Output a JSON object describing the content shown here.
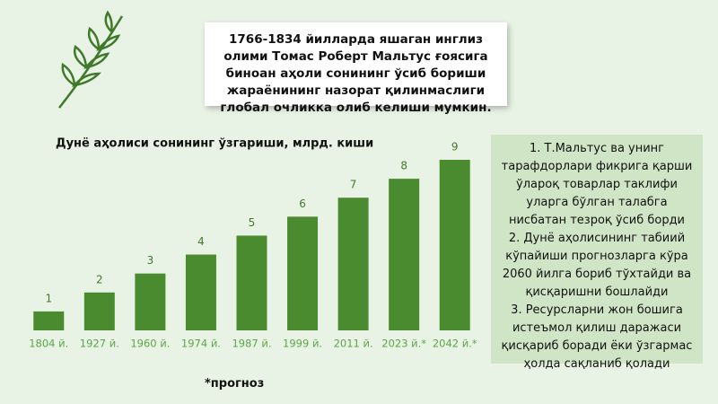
{
  "quote": "1766-1834 йилларда яшаган инглиз олими Томас Роберт Мальтус ғоясига биноан аҳоли сонининг ўсиб бориши жараёнининг назорат қилинмаслиги глобал очликка олиб келиши мумкин.",
  "notes": [
    "1. Т.Мальтус ва унинг тарафдорлари фикрига қарши ўлароқ товарлар таклифи уларга бўлган талабга нисбатан тезроқ ўсиб борди",
    "2. Дунё аҳолисининг табиий кўпайиши прогнозларга кўра 2060 йилга бориб тўхтайди ва қисқаришни бошлайди",
    "3. Ресурсларни жон бошига истеъмол қилиш даражаси қисқариб боради ёки ўзгармас ҳолда сақланиб қолади"
  ],
  "footnote": "*прогноз",
  "chart_data": {
    "type": "bar",
    "title": "Дунё аҳолиси сонининг ўзгариши, млрд. киши",
    "categories": [
      "1804 й.",
      "1927 й.",
      "1960 й.",
      "1974 й.",
      "1987 й.",
      "1999 й.",
      "2011 й.",
      "2023 й.*",
      "2042 й.*"
    ],
    "values": [
      1,
      2,
      3,
      4,
      5,
      6,
      7,
      8,
      9
    ],
    "color": "#4b8b30",
    "ylim": [
      0,
      9
    ]
  }
}
